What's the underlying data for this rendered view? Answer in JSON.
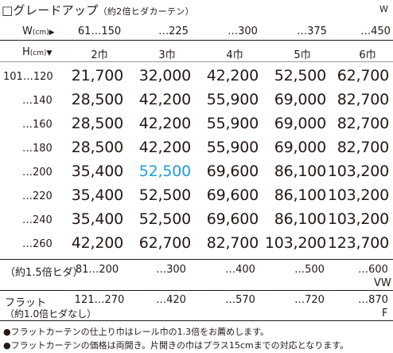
{
  "title": {
    "main": "□グレードアップ",
    "sub": "（約2倍ヒダカーテン）",
    "corner": "W"
  },
  "w_header": {
    "label": "W",
    "unit": "(cm)",
    "arrow": "▶",
    "ranges": [
      "61…150",
      "…225",
      "…300",
      "…375",
      "…450"
    ]
  },
  "h_header": {
    "label": "H",
    "unit": "(cm)",
    "arrow": "▼",
    "widths": [
      "2巾",
      "3巾",
      "4巾",
      "5巾",
      "6巾"
    ]
  },
  "rows": [
    {
      "label": "101…120",
      "values": [
        "21,700",
        "32,000",
        "42,200",
        "52,500",
        "62,700"
      ]
    },
    {
      "label": "…140",
      "values": [
        "28,500",
        "42,200",
        "55,900",
        "69,000",
        "82,700"
      ]
    },
    {
      "label": "…160",
      "values": [
        "28,500",
        "42,200",
        "55,900",
        "69,000",
        "82,700"
      ]
    },
    {
      "label": "…180",
      "values": [
        "28,500",
        "42,200",
        "55,900",
        "69,000",
        "82,700"
      ]
    },
    {
      "label": "…200",
      "values": [
        "35,400",
        "52,500",
        "69,600",
        "86,100",
        "103,200"
      ]
    },
    {
      "label": "…220",
      "values": [
        "35,400",
        "52,500",
        "69,600",
        "86,100",
        "103,200"
      ]
    },
    {
      "label": "…240",
      "values": [
        "35,400",
        "52,500",
        "69,600",
        "86,100",
        "103,200"
      ]
    },
    {
      "label": "…260",
      "values": [
        "42,200",
        "62,700",
        "82,700",
        "103,200",
        "123,700"
      ]
    }
  ],
  "highlight_color": "#1a9de0",
  "pleat15": {
    "label": "（約1.5倍ヒダ）",
    "ranges": [
      "81…200",
      "…300",
      "…400",
      "…500",
      "…600"
    ],
    "unit": "VW"
  },
  "flat": {
    "label": "フラット",
    "sublabel": "（約1.0倍ヒダなし）",
    "ranges": [
      "121…270",
      "…420",
      "…570",
      "…720",
      "…870"
    ],
    "unit": "F"
  },
  "notes": [
    "●フラットカーテンの仕上り巾はレール巾の1.3倍をお薦めします。",
    "●フラットカーテンの価格は両開き。片開きの巾はプラス15cmまでの対応となります。"
  ]
}
